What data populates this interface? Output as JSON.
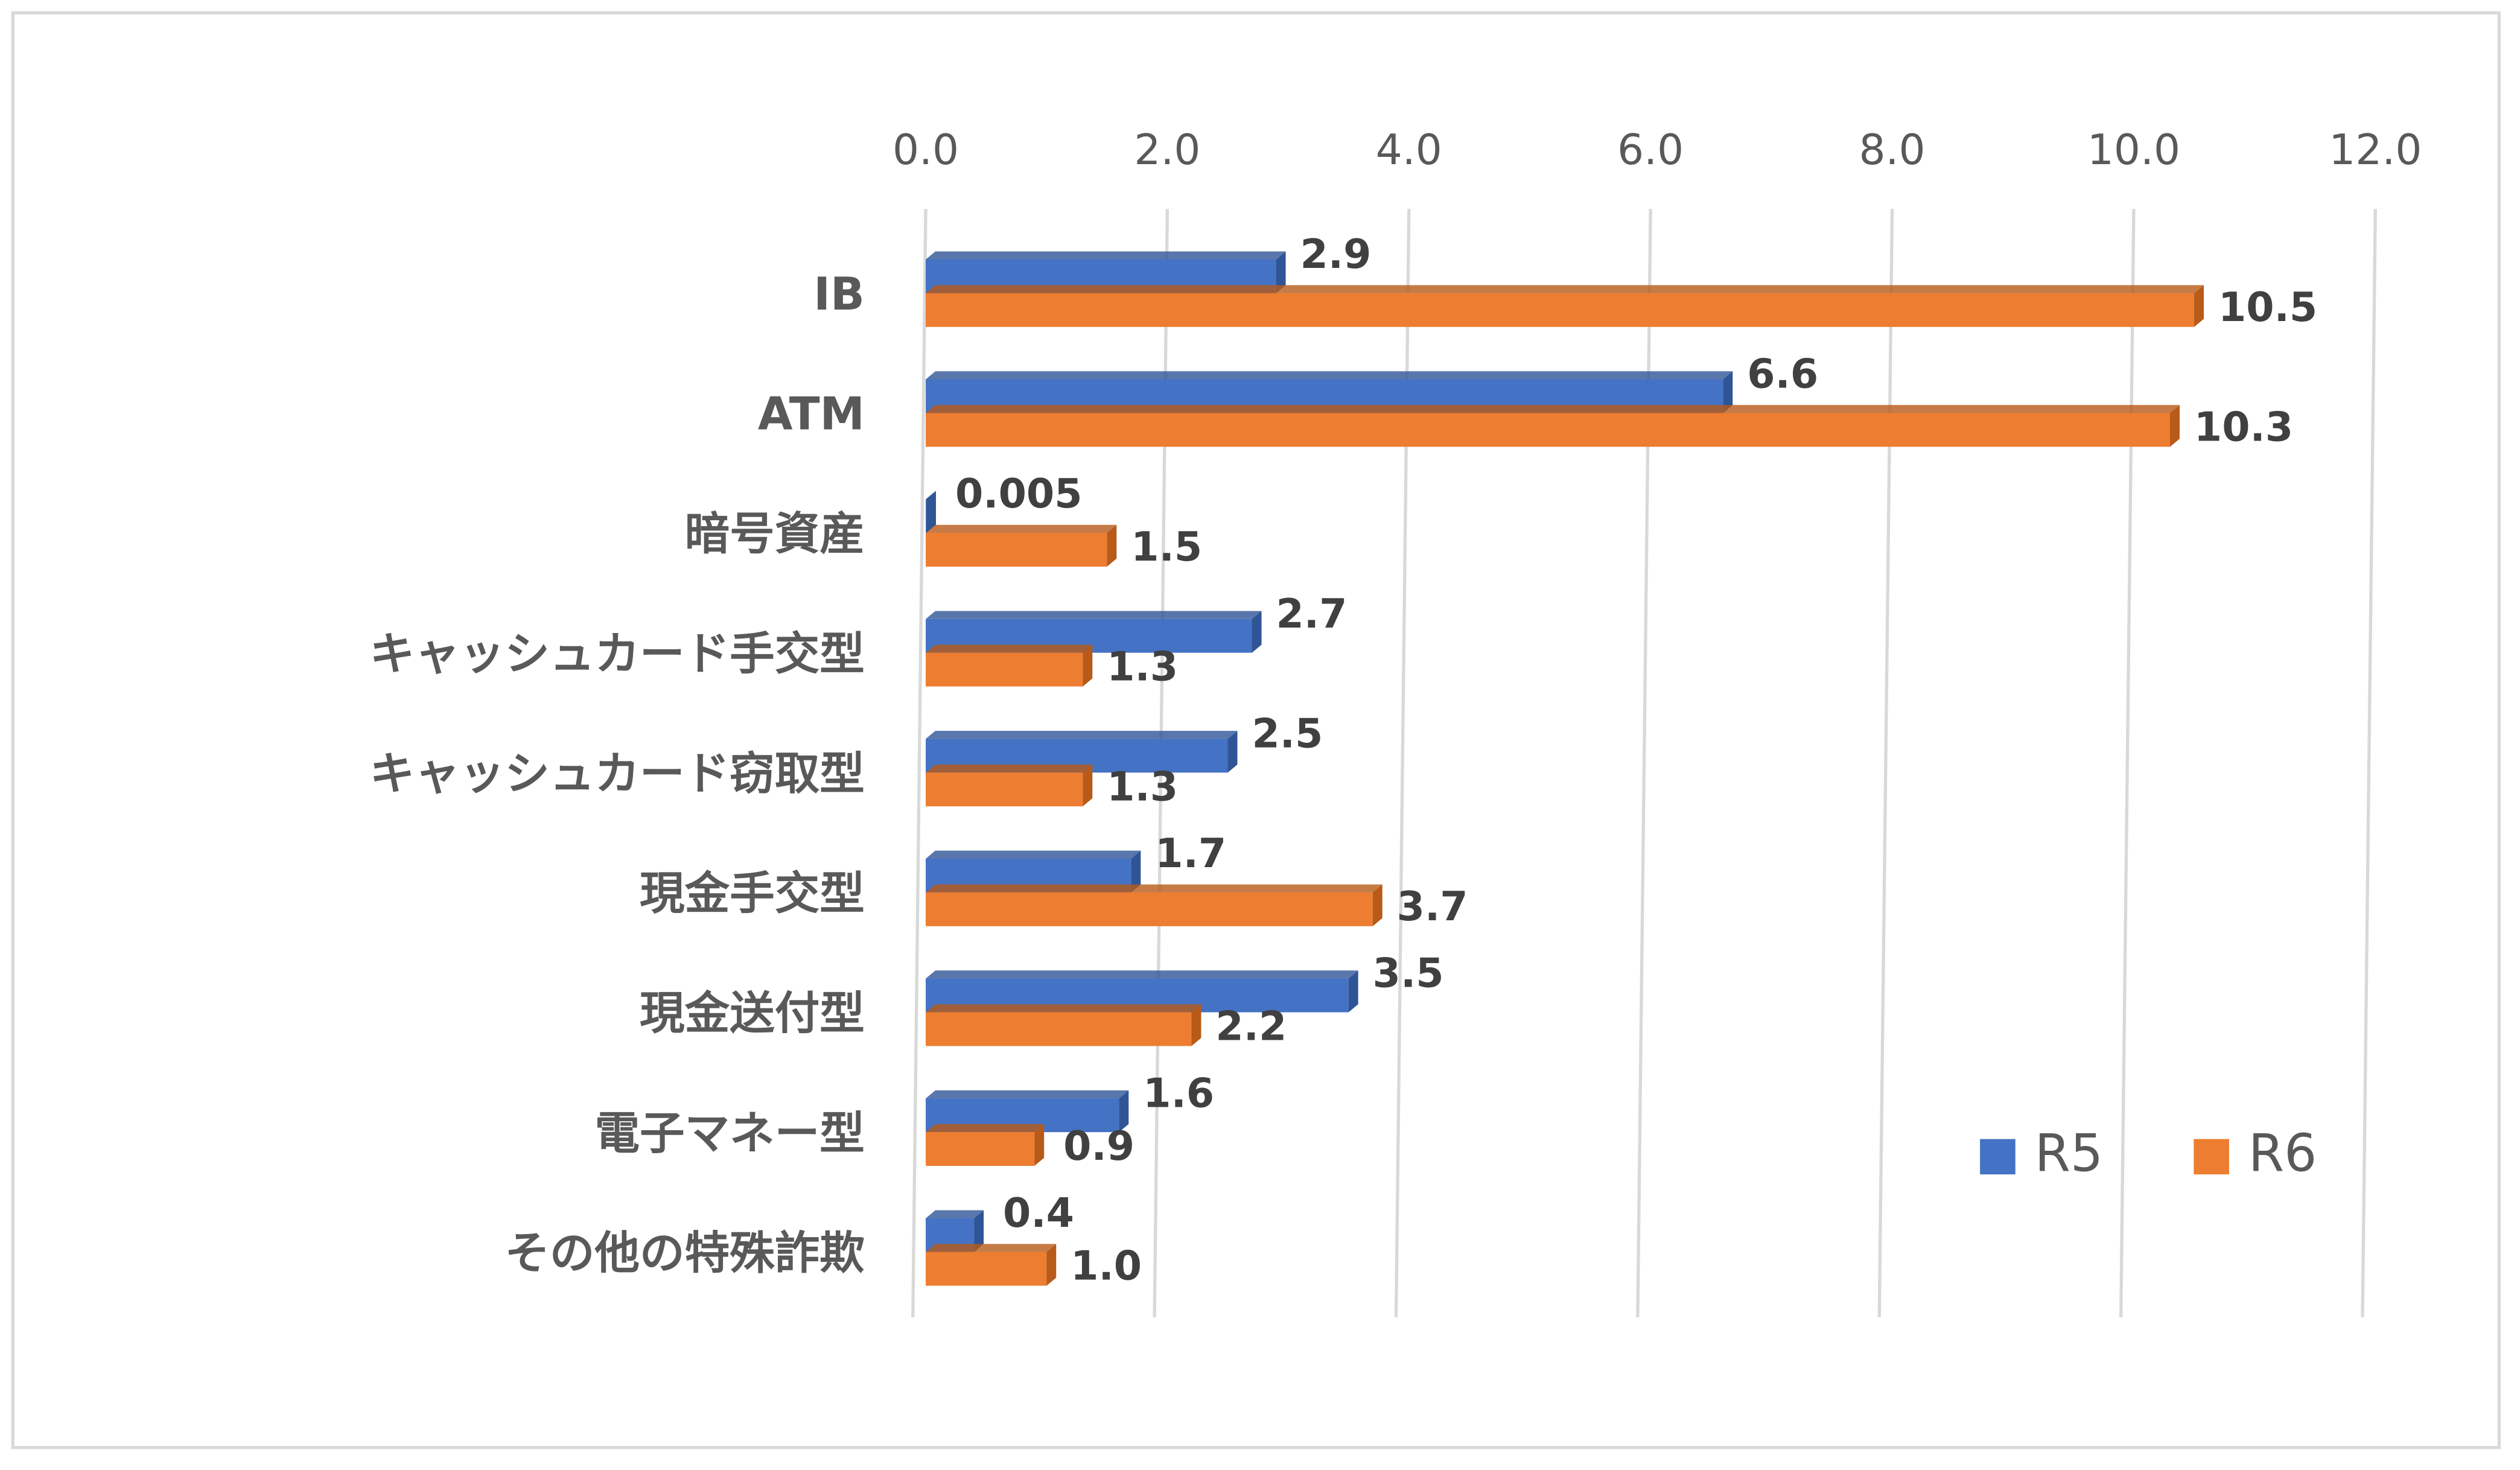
{
  "chart_data": {
    "type": "bar",
    "orientation": "horizontal",
    "categories": [
      "IB",
      "ATM",
      "暗号資産",
      "キャッシュカード手交型",
      "キャッシュカード窃取型",
      "現金手交型",
      "現金送付型",
      "電子マネー型",
      "その他の特殊詐欺"
    ],
    "series": [
      {
        "name": "R5",
        "color": "#4472c4",
        "values": [
          2.9,
          6.6,
          0.005,
          2.7,
          2.5,
          1.7,
          3.5,
          1.6,
          0.4
        ]
      },
      {
        "name": "R6",
        "color": "#ed7d31",
        "values": [
          10.5,
          10.3,
          1.5,
          1.3,
          1.3,
          3.7,
          2.2,
          0.9,
          1.0
        ],
        "value_labels": [
          "10.5",
          "10.3",
          "1.5",
          "1.3",
          "1.3",
          "3.7",
          "2.2",
          "0.9",
          "1.0"
        ]
      }
    ],
    "xlim": [
      0,
      12
    ],
    "xticks": [
      {
        "value": 0,
        "label": "0.0"
      },
      {
        "value": 2,
        "label": "2.0"
      },
      {
        "value": 4,
        "label": "4.0"
      },
      {
        "value": 6,
        "label": "6.0"
      },
      {
        "value": 8,
        "label": "8.0"
      },
      {
        "value": 10,
        "label": "10.0"
      },
      {
        "value": 12,
        "label": "12.0"
      }
    ],
    "grid": true,
    "legend": "bottom-right"
  }
}
